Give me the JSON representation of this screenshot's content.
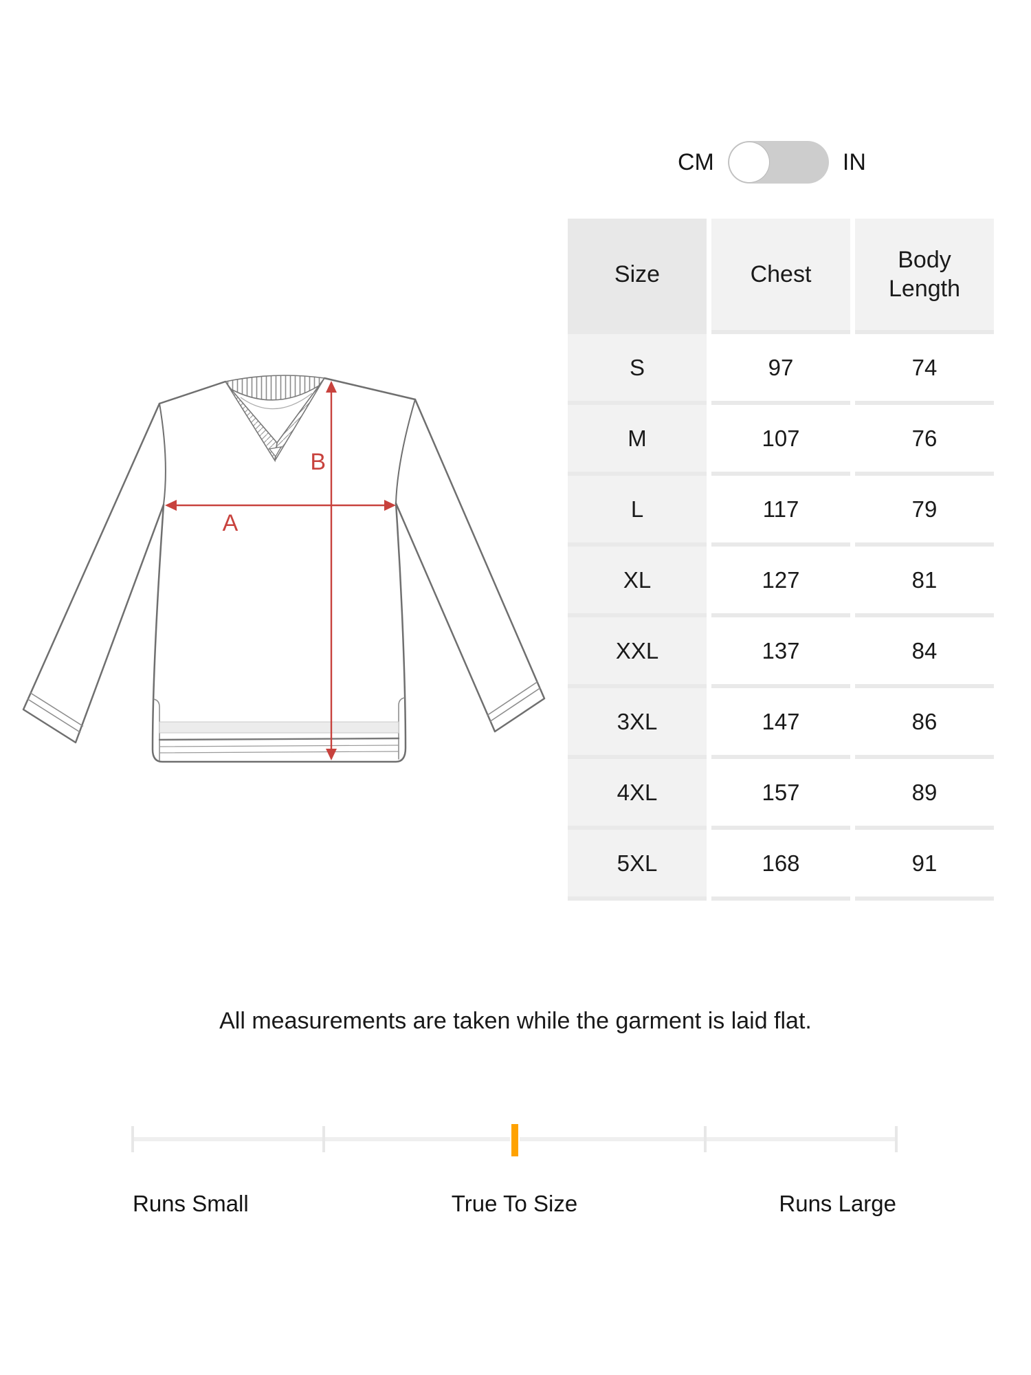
{
  "unit_toggle": {
    "left_label": "CM",
    "right_label": "IN",
    "selected_unit": "CM"
  },
  "size_table": {
    "headers": [
      "Size",
      "Chest",
      "Body Length"
    ],
    "rows": [
      [
        "S",
        "97",
        "74"
      ],
      [
        "M",
        "107",
        "76"
      ],
      [
        "L",
        "117",
        "79"
      ],
      [
        "XL",
        "127",
        "81"
      ],
      [
        "XXL",
        "137",
        "84"
      ],
      [
        "3XL",
        "147",
        "86"
      ],
      [
        "4XL",
        "157",
        "89"
      ],
      [
        "5XL",
        "168",
        "91"
      ]
    ]
  },
  "garment_diagram": {
    "chest_label": "A",
    "length_label": "B",
    "annotation_color": "#c8423d"
  },
  "note": "All measurements are taken while the garment is laid flat.",
  "fit_scale": {
    "labels": [
      "Runs Small",
      "True To Size",
      "Runs Large"
    ],
    "selected": "True To Size",
    "tick_count": 5,
    "marker_position": "center",
    "marker_color": "#ffa200"
  }
}
